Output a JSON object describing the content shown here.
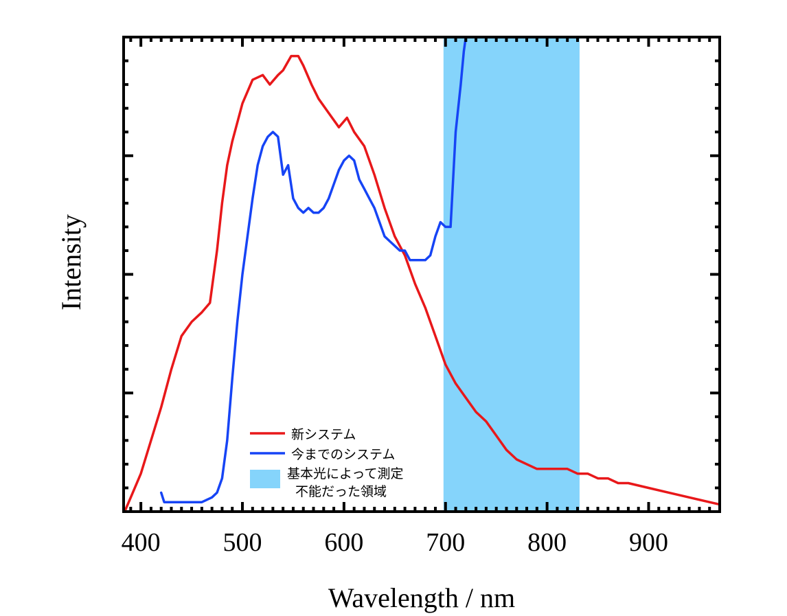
{
  "chart_data": {
    "type": "line",
    "title": "",
    "xlabel": "Wavelength / nm",
    "ylabel": "Intensity",
    "xlim": [
      383,
      970
    ],
    "ylim": [
      0,
      100
    ],
    "x_ticks": [
      400,
      500,
      600,
      700,
      800,
      900
    ],
    "x_tick_labels": [
      "400",
      "500",
      "600",
      "700",
      "800",
      "900"
    ],
    "y_tick_labels_shown": false,
    "grid": false,
    "legend_position": "lower-middle",
    "shaded_region": {
      "x_range": [
        698,
        832
      ],
      "color": "#85d4fb",
      "label_lines": [
        "基本光によって測定",
        "不能だった領域"
      ]
    },
    "series": [
      {
        "name": "新システム",
        "color": "#e8181a",
        "points": [
          [
            384,
            0
          ],
          [
            390,
            3
          ],
          [
            400,
            8
          ],
          [
            410,
            15
          ],
          [
            420,
            22
          ],
          [
            430,
            30
          ],
          [
            440,
            37
          ],
          [
            450,
            40
          ],
          [
            460,
            42
          ],
          [
            468,
            44
          ],
          [
            475,
            55
          ],
          [
            480,
            65
          ],
          [
            485,
            73
          ],
          [
            490,
            78
          ],
          [
            500,
            86
          ],
          [
            510,
            91
          ],
          [
            520,
            92
          ],
          [
            527,
            90
          ],
          [
            535,
            92
          ],
          [
            540,
            93
          ],
          [
            548,
            96
          ],
          [
            555,
            96
          ],
          [
            560,
            94
          ],
          [
            568,
            90
          ],
          [
            575,
            87
          ],
          [
            585,
            84
          ],
          [
            595,
            81
          ],
          [
            603,
            83
          ],
          [
            610,
            80
          ],
          [
            620,
            77
          ],
          [
            630,
            71
          ],
          [
            640,
            64
          ],
          [
            650,
            58
          ],
          [
            660,
            54
          ],
          [
            670,
            48
          ],
          [
            680,
            43
          ],
          [
            690,
            37
          ],
          [
            700,
            31
          ],
          [
            710,
            27
          ],
          [
            720,
            24
          ],
          [
            730,
            21
          ],
          [
            740,
            19
          ],
          [
            750,
            16
          ],
          [
            760,
            13
          ],
          [
            770,
            11
          ],
          [
            780,
            10
          ],
          [
            790,
            9
          ],
          [
            800,
            9
          ],
          [
            810,
            9
          ],
          [
            820,
            9
          ],
          [
            830,
            8
          ],
          [
            840,
            8
          ],
          [
            850,
            7
          ],
          [
            860,
            7
          ],
          [
            870,
            6
          ],
          [
            880,
            6
          ],
          [
            900,
            5
          ],
          [
            920,
            4
          ],
          [
            940,
            3
          ],
          [
            960,
            2
          ],
          [
            970,
            1.5
          ]
        ]
      },
      {
        "name": "今までのシステム",
        "color": "#1644f5",
        "points": [
          [
            420,
            4
          ],
          [
            423,
            2
          ],
          [
            430,
            2
          ],
          [
            440,
            2
          ],
          [
            450,
            2
          ],
          [
            460,
            2
          ],
          [
            470,
            3
          ],
          [
            475,
            4
          ],
          [
            480,
            7
          ],
          [
            485,
            15
          ],
          [
            490,
            28
          ],
          [
            495,
            40
          ],
          [
            500,
            50
          ],
          [
            505,
            58
          ],
          [
            510,
            66
          ],
          [
            515,
            73
          ],
          [
            520,
            77
          ],
          [
            525,
            79
          ],
          [
            530,
            80
          ],
          [
            535,
            79
          ],
          [
            540,
            71
          ],
          [
            545,
            73
          ],
          [
            550,
            66
          ],
          [
            555,
            64
          ],
          [
            560,
            63
          ],
          [
            565,
            64
          ],
          [
            570,
            63
          ],
          [
            575,
            63
          ],
          [
            580,
            64
          ],
          [
            585,
            66
          ],
          [
            590,
            69
          ],
          [
            595,
            72
          ],
          [
            600,
            74
          ],
          [
            605,
            75
          ],
          [
            610,
            74
          ],
          [
            615,
            70
          ],
          [
            620,
            68
          ],
          [
            625,
            66
          ],
          [
            630,
            64
          ],
          [
            635,
            61
          ],
          [
            640,
            58
          ],
          [
            645,
            57
          ],
          [
            650,
            56
          ],
          [
            655,
            55
          ],
          [
            660,
            55
          ],
          [
            665,
            53
          ],
          [
            670,
            53
          ],
          [
            675,
            53
          ],
          [
            680,
            53
          ],
          [
            685,
            54
          ],
          [
            690,
            58
          ],
          [
            695,
            61
          ],
          [
            700,
            60
          ],
          [
            705,
            60
          ],
          [
            710,
            80
          ],
          [
            715,
            90
          ],
          [
            718,
            97
          ],
          [
            720,
            100
          ]
        ]
      }
    ]
  }
}
